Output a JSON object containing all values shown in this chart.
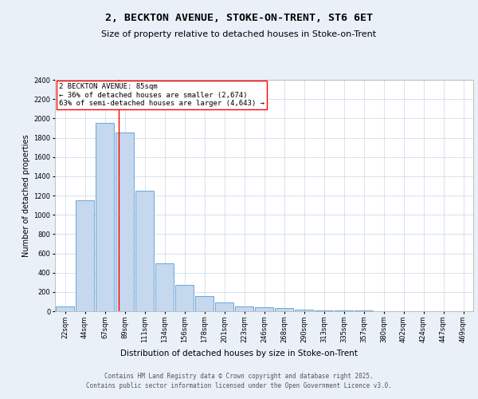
{
  "title": "2, BECKTON AVENUE, STOKE-ON-TRENT, ST6 6ET",
  "subtitle": "Size of property relative to detached houses in Stoke-on-Trent",
  "xlabel": "Distribution of detached houses by size in Stoke-on-Trent",
  "ylabel": "Number of detached properties",
  "categories": [
    "22sqm",
    "44sqm",
    "67sqm",
    "89sqm",
    "111sqm",
    "134sqm",
    "156sqm",
    "178sqm",
    "201sqm",
    "223sqm",
    "246sqm",
    "268sqm",
    "290sqm",
    "313sqm",
    "335sqm",
    "357sqm",
    "380sqm",
    "402sqm",
    "424sqm",
    "447sqm",
    "469sqm"
  ],
  "values": [
    50,
    1150,
    1950,
    1850,
    1250,
    500,
    270,
    160,
    90,
    50,
    40,
    30,
    20,
    10,
    8,
    5,
    3,
    2,
    1,
    1,
    0
  ],
  "bar_color": "#c5d8ed",
  "bar_edge_color": "#5b9bd5",
  "ylim": [
    0,
    2400
  ],
  "yticks": [
    0,
    200,
    400,
    600,
    800,
    1000,
    1200,
    1400,
    1600,
    1800,
    2000,
    2200,
    2400
  ],
  "red_line_x": 2.68,
  "annotation_text": "2 BECKTON AVENUE: 85sqm\n← 36% of detached houses are smaller (2,674)\n63% of semi-detached houses are larger (4,643) →",
  "footer_line1": "Contains HM Land Registry data © Crown copyright and database right 2025.",
  "footer_line2": "Contains public sector information licensed under the Open Government Licence v3.0.",
  "bg_color": "#eaf0f8",
  "plot_bg_color": "#ffffff",
  "grid_color": "#c8d8e8",
  "title_fontsize": 9.5,
  "subtitle_fontsize": 8,
  "xlabel_fontsize": 7.5,
  "ylabel_fontsize": 7,
  "tick_fontsize": 6,
  "annotation_fontsize": 6.5,
  "footer_fontsize": 5.5
}
